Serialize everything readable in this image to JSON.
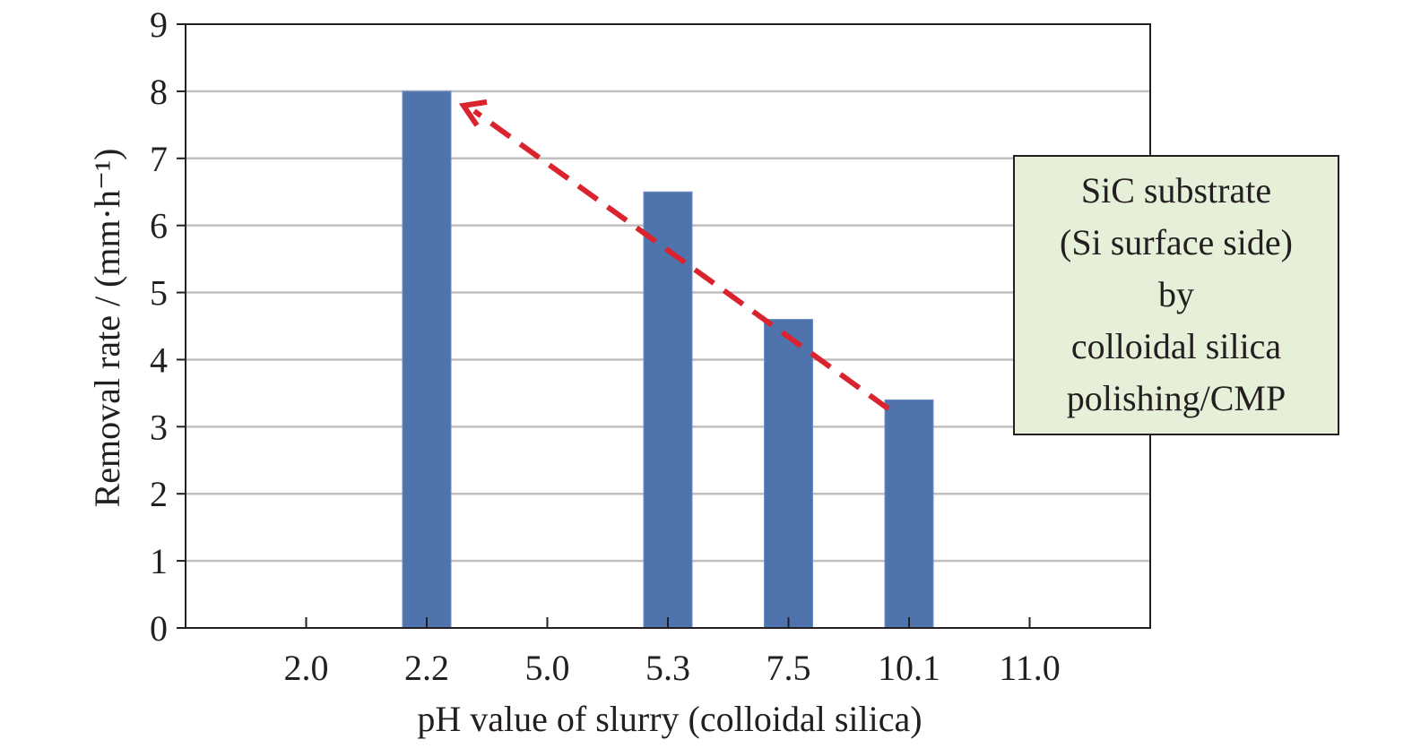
{
  "chart_data": {
    "type": "bar",
    "categories": [
      "2.0",
      "2.2",
      "5.0",
      "5.3",
      "7.5",
      "10.1",
      "11.0"
    ],
    "values": [
      0,
      8.0,
      0,
      6.5,
      4.6,
      3.4,
      0
    ],
    "xlabel": "pH value of slurry (colloidal silica)",
    "ylabel": "Removal rate / (mm·h⁻¹)",
    "ylim": [
      0,
      9
    ],
    "yticks": [
      "0",
      "1",
      "2",
      "3",
      "4",
      "5",
      "6",
      "7",
      "8",
      "9"
    ],
    "grid": true,
    "colors": {
      "bar": "#4f74ad",
      "grid": "#bfbfbf",
      "frame": "#231f20",
      "arrow": "#d9232e",
      "annotation_fill": "#e6efd8"
    },
    "trend_arrow": {
      "from_category": "10.1",
      "from_value": 3.4,
      "to_category": "2.2",
      "to_value": 8.0,
      "style": "dashed"
    },
    "annotation": {
      "lines": [
        "SiC substrate",
        "(Si surface side)",
        "by",
        "colloidal silica",
        "polishing/CMP"
      ]
    }
  }
}
